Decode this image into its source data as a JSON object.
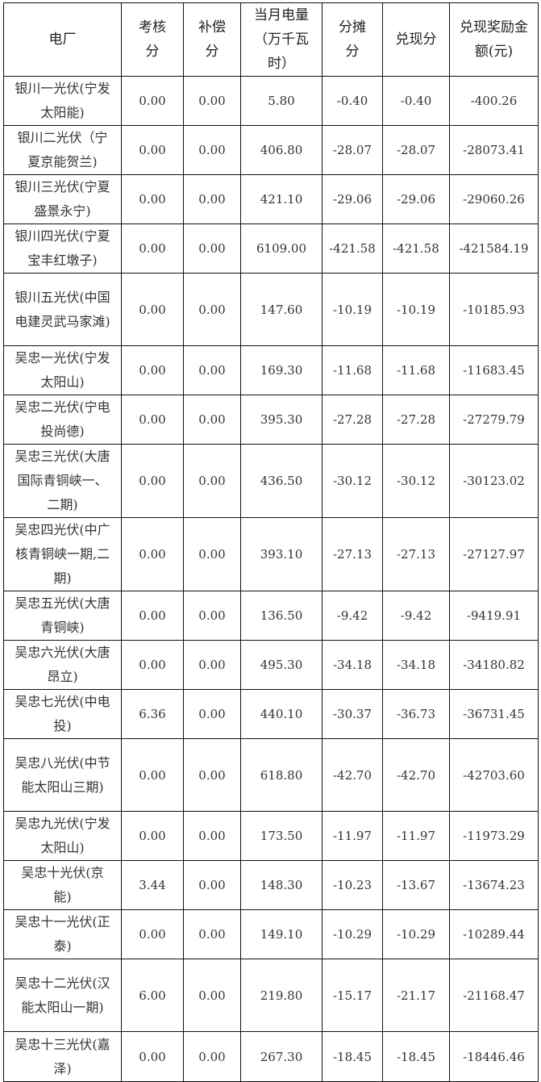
{
  "headers": [
    "电厂",
    "考核分",
    "补偿分",
    "当月电量（万千瓦时）",
    "分摊分",
    "兑现分",
    "兑现奖励金额(元)"
  ],
  "rows": [
    [
      "银川一光伏(宁发太阳能)",
      "0.00",
      "0.00",
      "5.80",
      "-0.40",
      "-0.40",
      "-400.26"
    ],
    [
      "银川二光伏（宁夏京能贺兰)",
      "0.00",
      "0.00",
      "406.80",
      "-28.07",
      "-28.07",
      "-28073.41"
    ],
    [
      "银川三光伏(宁夏盛景永宁)",
      "0.00",
      "0.00",
      "421.10",
      "-29.06",
      "-29.06",
      "-29060.26"
    ],
    [
      "银川四光伏(宁夏宝丰红墩子)",
      "0.00",
      "0.00",
      "6109.00",
      "-421.58",
      "-421.58",
      "-421584.19"
    ],
    [
      "银川五光伏(中国电建灵武马家滩)",
      "0.00",
      "0.00",
      "147.60",
      "-10.19",
      "-10.19",
      "-10185.93"
    ],
    [
      "吴忠一光伏(宁发太阳山)",
      "0.00",
      "0.00",
      "169.30",
      "-11.68",
      "-11.68",
      "-11683.45"
    ],
    [
      "吴忠二光伏(宁电投尚德)",
      "0.00",
      "0.00",
      "395.30",
      "-27.28",
      "-27.28",
      "-27279.79"
    ],
    [
      "吴忠三光伏(大唐国际青铜峡一、二期)",
      "0.00",
      "0.00",
      "436.50",
      "-30.12",
      "-30.12",
      "-30123.02"
    ],
    [
      "吴忠四光伏(中广核青铜峡一期,二期)",
      "0.00",
      "0.00",
      "393.10",
      "-27.13",
      "-27.13",
      "-27127.97"
    ],
    [
      "吴忠五光伏(大唐青铜峡)",
      "0.00",
      "0.00",
      "136.50",
      "-9.42",
      "-9.42",
      "-9419.91"
    ],
    [
      "吴忠六光伏(大唐昂立)",
      "0.00",
      "0.00",
      "495.30",
      "-34.18",
      "-34.18",
      "-34180.82"
    ],
    [
      "吴忠七光伏(中电投)",
      "6.36",
      "0.00",
      "440.10",
      "-30.37",
      "-36.73",
      "-36731.45"
    ],
    [
      "吴忠八光伏(中节能太阳山三期)",
      "0.00",
      "0.00",
      "618.80",
      "-42.70",
      "-42.70",
      "-42703.60"
    ],
    [
      "吴忠九光伏(宁发太阳山)",
      "0.00",
      "0.00",
      "173.50",
      "-11.97",
      "-11.97",
      "-11973.29"
    ],
    [
      "吴忠十光伏(京能)",
      "3.44",
      "0.00",
      "148.30",
      "-10.23",
      "-13.67",
      "-13674.23"
    ],
    [
      "吴忠十一光伏(正泰)",
      "0.00",
      "0.00",
      "149.10",
      "-10.29",
      "-10.29",
      "-10289.44"
    ],
    [
      "吴忠十二光伏(汉能太阳山一期)",
      "6.00",
      "0.00",
      "219.80",
      "-15.17",
      "-21.17",
      "-21168.47"
    ],
    [
      "吴忠十三光伏(嘉泽)",
      "0.00",
      "0.00",
      "267.30",
      "-18.45",
      "-18.45",
      "-18446.46"
    ]
  ]
}
